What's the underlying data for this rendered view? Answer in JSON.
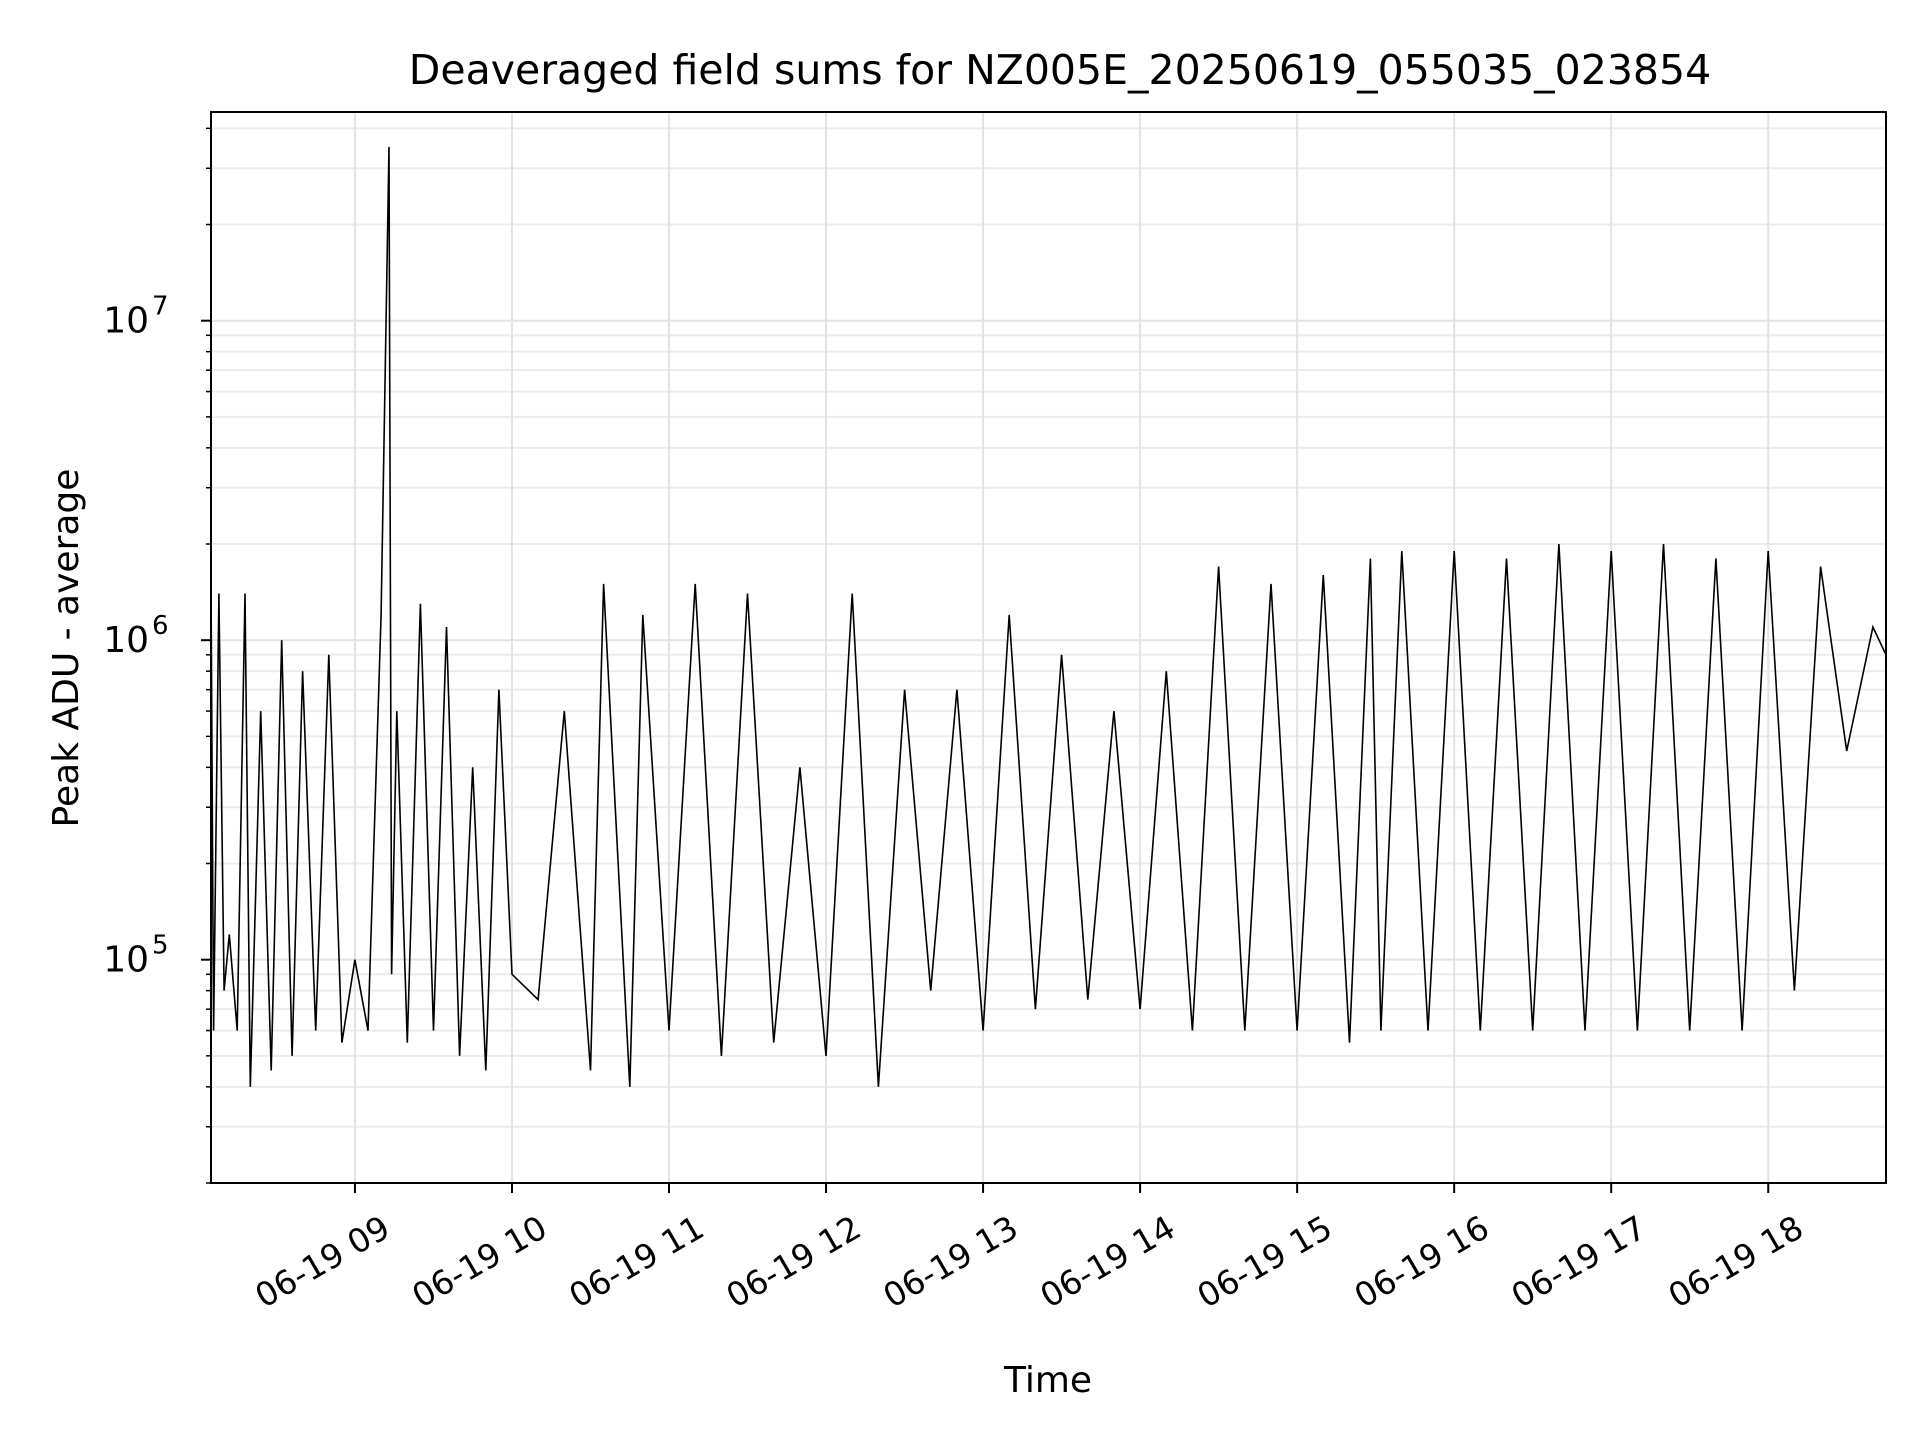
{
  "chart_data": {
    "type": "line",
    "title": "Deaveraged field sums for NZ005E_20250619_055035_023854",
    "xlabel": "Time",
    "ylabel": "Peak ADU - average",
    "xscale": "time",
    "yscale": "log",
    "xlim": [
      "2025-06-19 08:05",
      "2025-06-19 18:45"
    ],
    "ylim": [
      20000,
      45000000
    ],
    "x_ticks": [
      {
        "time": "2025-06-19 09:00",
        "label": "06-19 09"
      },
      {
        "time": "2025-06-19 10:00",
        "label": "06-19 10"
      },
      {
        "time": "2025-06-19 11:00",
        "label": "06-19 11"
      },
      {
        "time": "2025-06-19 12:00",
        "label": "06-19 12"
      },
      {
        "time": "2025-06-19 13:00",
        "label": "06-19 13"
      },
      {
        "time": "2025-06-19 14:00",
        "label": "06-19 14"
      },
      {
        "time": "2025-06-19 15:00",
        "label": "06-19 15"
      },
      {
        "time": "2025-06-19 16:00",
        "label": "06-19 16"
      },
      {
        "time": "2025-06-19 17:00",
        "label": "06-19 17"
      },
      {
        "time": "2025-06-19 18:00",
        "label": "06-19 18"
      }
    ],
    "y_ticks": [
      {
        "value": 100000,
        "base": "10",
        "exp": "5"
      },
      {
        "value": 1000000,
        "base": "10",
        "exp": "6"
      },
      {
        "value": 10000000,
        "base": "10",
        "exp": "7"
      }
    ],
    "grid": true,
    "line_color": "#000000",
    "series": [
      {
        "x": [
          "2025-06-19 08:05",
          "2025-06-19 08:06",
          "2025-06-19 08:08",
          "2025-06-19 08:10",
          "2025-06-19 08:12",
          "2025-06-19 08:15",
          "2025-06-19 08:18",
          "2025-06-19 08:20",
          "2025-06-19 08:24",
          "2025-06-19 08:28",
          "2025-06-19 08:32",
          "2025-06-19 08:36",
          "2025-06-19 08:40",
          "2025-06-19 08:45",
          "2025-06-19 08:50",
          "2025-06-19 08:55",
          "2025-06-19 09:00",
          "2025-06-19 09:05",
          "2025-06-19 09:10",
          "2025-06-19 09:13",
          "2025-06-19 09:14",
          "2025-06-19 09:16",
          "2025-06-19 09:20",
          "2025-06-19 09:25",
          "2025-06-19 09:30",
          "2025-06-19 09:35",
          "2025-06-19 09:40",
          "2025-06-19 09:45",
          "2025-06-19 09:50",
          "2025-06-19 09:55",
          "2025-06-19 10:00",
          "2025-06-19 10:10",
          "2025-06-19 10:20",
          "2025-06-19 10:30",
          "2025-06-19 10:35",
          "2025-06-19 10:45",
          "2025-06-19 10:50",
          "2025-06-19 11:00",
          "2025-06-19 11:10",
          "2025-06-19 11:20",
          "2025-06-19 11:30",
          "2025-06-19 11:40",
          "2025-06-19 11:50",
          "2025-06-19 12:00",
          "2025-06-19 12:10",
          "2025-06-19 12:20",
          "2025-06-19 12:30",
          "2025-06-19 12:40",
          "2025-06-19 12:50",
          "2025-06-19 13:00",
          "2025-06-19 13:10",
          "2025-06-19 13:20",
          "2025-06-19 13:30",
          "2025-06-19 13:40",
          "2025-06-19 13:50",
          "2025-06-19 14:00",
          "2025-06-19 14:10",
          "2025-06-19 14:20",
          "2025-06-19 14:30",
          "2025-06-19 14:40",
          "2025-06-19 14:50",
          "2025-06-19 15:00",
          "2025-06-19 15:10",
          "2025-06-19 15:20",
          "2025-06-19 15:28",
          "2025-06-19 15:32",
          "2025-06-19 15:40",
          "2025-06-19 15:50",
          "2025-06-19 16:00",
          "2025-06-19 16:10",
          "2025-06-19 16:20",
          "2025-06-19 16:30",
          "2025-06-19 16:40",
          "2025-06-19 16:50",
          "2025-06-19 17:00",
          "2025-06-19 17:10",
          "2025-06-19 17:20",
          "2025-06-19 17:30",
          "2025-06-19 17:40",
          "2025-06-19 17:50",
          "2025-06-19 18:00",
          "2025-06-19 18:10",
          "2025-06-19 18:20",
          "2025-06-19 18:30",
          "2025-06-19 18:40",
          "2025-06-19 18:45"
        ],
        "y": [
          1500000,
          60000,
          1400000,
          80000,
          120000,
          60000,
          1400000,
          40000,
          600000,
          45000,
          1000000,
          50000,
          800000,
          60000,
          900000,
          55000,
          100000,
          60000,
          1200000,
          35000000,
          90000,
          600000,
          55000,
          1300000,
          60000,
          1100000,
          50000,
          400000,
          45000,
          700000,
          90000,
          75000,
          600000,
          45000,
          1500000,
          40000,
          1200000,
          60000,
          1500000,
          50000,
          1400000,
          55000,
          400000,
          50000,
          1400000,
          40000,
          700000,
          80000,
          700000,
          60000,
          1200000,
          70000,
          900000,
          75000,
          600000,
          70000,
          800000,
          60000,
          1700000,
          60000,
          1500000,
          60000,
          1600000,
          55000,
          1800000,
          60000,
          1900000,
          60000,
          1900000,
          60000,
          1800000,
          60000,
          2000000,
          60000,
          1900000,
          60000,
          2000000,
          60000,
          1800000,
          60000,
          1900000,
          80000,
          1700000,
          450000,
          1100000,
          900000
        ]
      }
    ]
  }
}
